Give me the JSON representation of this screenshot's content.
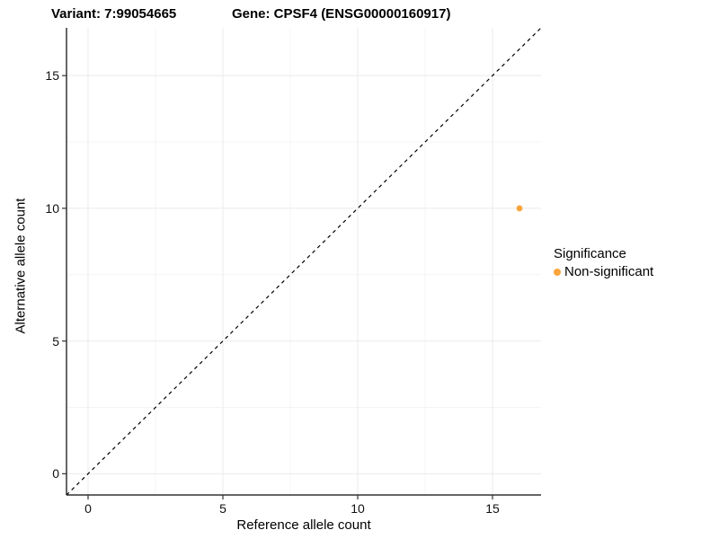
{
  "title": {
    "variant": "Variant: 7:99054665",
    "gene": "Gene: CPSF4 (ENSG00000160917)"
  },
  "axes": {
    "x": {
      "label": "Reference allele count",
      "ticks": [
        0,
        5,
        10,
        15
      ],
      "minor_ticks": [
        2.5,
        7.5,
        12.5
      ],
      "limits": [
        -0.8,
        16.8
      ]
    },
    "y": {
      "label": "Alternative allele count",
      "ticks": [
        0,
        5,
        10,
        15
      ],
      "minor_ticks": [
        2.5,
        7.5,
        12.5
      ],
      "limits": [
        -0.8,
        16.8
      ]
    }
  },
  "legend": {
    "title": "Significance",
    "items": [
      {
        "label": "Non-significant",
        "color": "#FAA43C"
      }
    ]
  },
  "chart_data": {
    "type": "scatter",
    "title": "Variant: 7:99054665   Gene: CPSF4 (ENSG00000160917)",
    "xlabel": "Reference allele count",
    "ylabel": "Alternative allele count",
    "xlim": [
      -0.8,
      16.8
    ],
    "ylim": [
      -0.8,
      16.8
    ],
    "x_ticks": [
      0,
      5,
      10,
      15
    ],
    "y_ticks": [
      0,
      5,
      10,
      15
    ],
    "grid": "on",
    "legend_position": "right",
    "series": [
      {
        "name": "Non-significant",
        "color": "#FAA43C",
        "points": [
          {
            "x": 16,
            "y": 10
          }
        ]
      }
    ],
    "identity_line": {
      "equation": "y = x",
      "style": "dashed",
      "color": "#000000"
    }
  },
  "colors": {
    "point": "#FAA43C",
    "axis_line": "#333333",
    "tick_mark": "#333333",
    "grid_major": "#EBEBEB",
    "grid_minor": "#F4F4F4",
    "background": "#FFFFFF"
  }
}
